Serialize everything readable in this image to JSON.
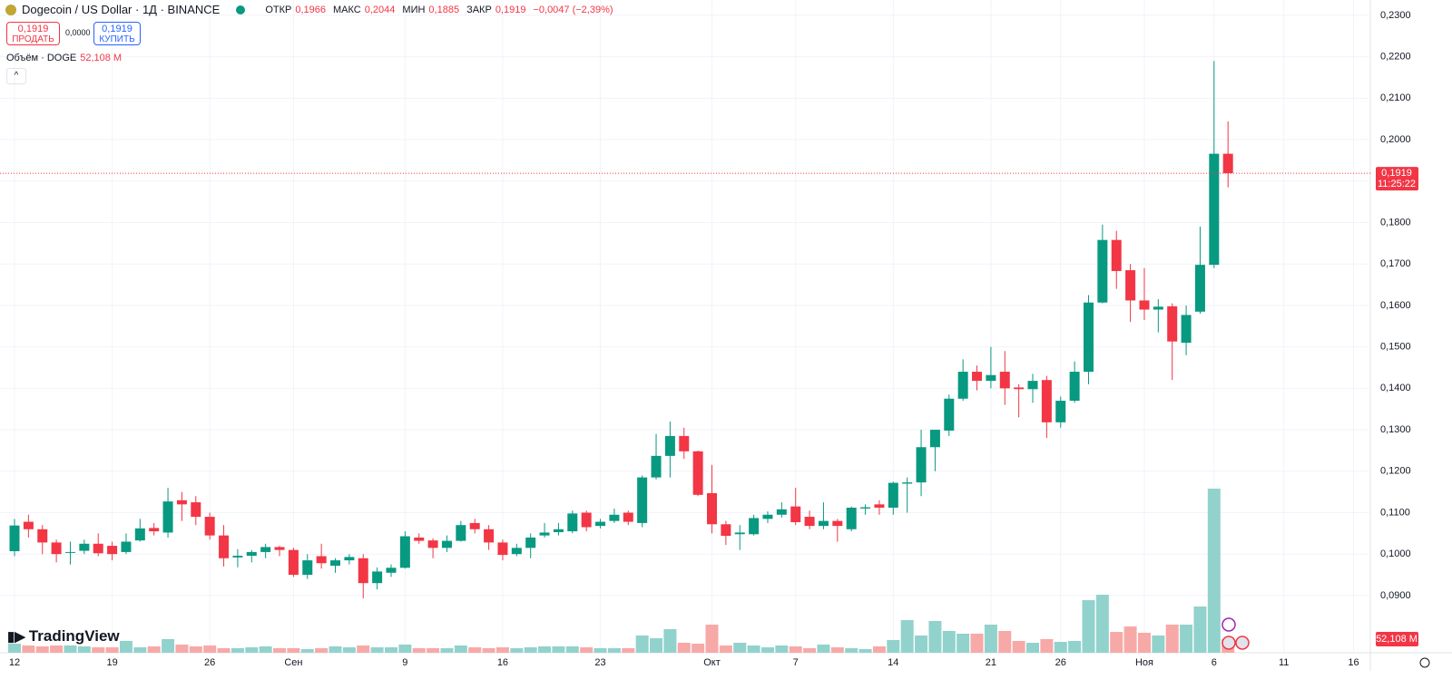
{
  "header": {
    "symbol": "Dogecoin / US Dollar · 1Д · BINANCE",
    "ohlc": [
      {
        "label": "ОТКР",
        "value": "0,1966"
      },
      {
        "label": "МАКС",
        "value": "0,2044"
      },
      {
        "label": "МИН",
        "value": "0,1885"
      },
      {
        "label": "ЗАКР",
        "value": "0,1919"
      }
    ],
    "change": "−0,0047 (−2,39%)"
  },
  "trade": {
    "sell_price": "0,1919",
    "sell_label": "ПРОДАТЬ",
    "spread": "0,0000",
    "buy_price": "0,1919",
    "buy_label": "КУПИТЬ"
  },
  "volume_legend": {
    "label": "Объём · DOGE",
    "value": "52,108 M"
  },
  "logo": "TradingView",
  "chart_data": {
    "type": "candlestick",
    "categories": [
      "12",
      null,
      null,
      null,
      null,
      null,
      null,
      "19",
      null,
      null,
      null,
      null,
      null,
      null,
      "26",
      null,
      null,
      null,
      null,
      null,
      "Сен",
      null,
      null,
      null,
      null,
      null,
      null,
      null,
      "9",
      null,
      null,
      null,
      null,
      null,
      null,
      "16",
      null,
      null,
      null,
      null,
      null,
      null,
      "23",
      null,
      null,
      null,
      null,
      null,
      null,
      null,
      "Окт",
      null,
      null,
      null,
      null,
      null,
      "7",
      null,
      null,
      null,
      null,
      null,
      null,
      "14",
      null,
      null,
      null,
      null,
      null,
      null,
      "21",
      null,
      null,
      null,
      null,
      "26",
      null,
      null,
      null,
      null,
      null,
      "Ноя",
      null,
      null,
      null,
      null,
      "6",
      null
    ],
    "future_labels": [
      "11",
      "16"
    ],
    "open": [
      0.1007,
      0.1078,
      0.106,
      0.1028,
      0.1003,
      0.1008,
      0.1025,
      0.102,
      0.1005,
      0.1033,
      0.1063,
      0.1052,
      0.113,
      0.1125,
      0.109,
      0.1045,
      0.0992,
      0.0996,
      0.1005,
      0.1017,
      0.101,
      0.095,
      0.0995,
      0.0972,
      0.0985,
      0.099,
      0.093,
      0.0955,
      0.0967,
      0.104,
      0.1033,
      0.1015,
      0.1032,
      0.1075,
      0.106,
      0.1028,
      0.1,
      0.1015,
      0.1045,
      0.1053,
      0.1055,
      0.11,
      0.1068,
      0.108,
      0.11,
      0.1075,
      0.1185,
      0.1237,
      0.1285,
      0.1248,
      0.1147,
      0.1072,
      0.1048,
      0.1048,
      0.1085,
      0.1095,
      0.1115,
      0.109,
      0.1068,
      0.108,
      0.106,
      0.111,
      0.112,
      0.1112,
      0.117,
      0.1173,
      0.1258,
      0.1298,
      0.1375,
      0.144,
      0.1418,
      0.144,
      0.1402,
      0.1398,
      0.142,
      0.1318,
      0.137,
      0.144,
      0.1607,
      0.1758,
      0.1685,
      0.1612,
      0.159,
      0.1598,
      0.151,
      0.1585,
      0.1698,
      0.1966
    ],
    "high": [
      0.1085,
      0.1095,
      0.107,
      0.1035,
      0.103,
      0.1035,
      0.105,
      0.103,
      0.105,
      0.1085,
      0.1075,
      0.116,
      0.115,
      0.114,
      0.11,
      0.107,
      0.1012,
      0.101,
      0.1025,
      0.102,
      0.1015,
      0.1,
      0.1025,
      0.099,
      0.1,
      0.1,
      0.0968,
      0.0975,
      0.1055,
      0.105,
      0.1038,
      0.1045,
      0.108,
      0.1085,
      0.107,
      0.1035,
      0.1025,
      0.105,
      0.1075,
      0.1075,
      0.1105,
      0.1105,
      0.1085,
      0.111,
      0.1105,
      0.119,
      0.129,
      0.132,
      0.1305,
      0.125,
      0.1215,
      0.108,
      0.107,
      0.1095,
      0.1103,
      0.1125,
      0.116,
      0.1105,
      0.1125,
      0.1085,
      0.1115,
      0.112,
      0.113,
      0.1175,
      0.1185,
      0.13,
      0.13,
      0.1385,
      0.147,
      0.1455,
      0.15,
      0.149,
      0.141,
      0.1435,
      0.143,
      0.138,
      0.1465,
      0.1625,
      0.1795,
      0.178,
      0.17,
      0.169,
      0.1615,
      0.1605,
      0.16,
      0.179,
      0.219,
      0.2044
    ],
    "low": [
      0.0995,
      0.104,
      0.1,
      0.098,
      0.0975,
      0.1,
      0.0995,
      0.0985,
      0.1,
      0.103,
      0.1045,
      0.104,
      0.108,
      0.107,
      0.1035,
      0.097,
      0.0968,
      0.098,
      0.099,
      0.0995,
      0.0945,
      0.094,
      0.0965,
      0.0955,
      0.0975,
      0.0893,
      0.0915,
      0.0945,
      0.0965,
      0.1025,
      0.099,
      0.1005,
      0.103,
      0.105,
      0.101,
      0.0985,
      0.0995,
      0.099,
      0.104,
      0.1045,
      0.105,
      0.1055,
      0.1062,
      0.1075,
      0.107,
      0.1065,
      0.118,
      0.1185,
      0.123,
      0.114,
      0.105,
      0.1022,
      0.101,
      0.1045,
      0.1075,
      0.1088,
      0.107,
      0.106,
      0.106,
      0.103,
      0.1055,
      0.1095,
      0.1095,
      0.1095,
      0.11,
      0.114,
      0.12,
      0.1285,
      0.137,
      0.1395,
      0.14,
      0.136,
      0.133,
      0.1365,
      0.128,
      0.1305,
      0.1365,
      0.141,
      0.1605,
      0.164,
      0.156,
      0.1565,
      0.1535,
      0.142,
      0.148,
      0.158,
      0.169,
      0.1885
    ],
    "close": [
      0.1069,
      0.106,
      0.1028,
      0.1,
      0.1005,
      0.1025,
      0.1002,
      0.1,
      0.103,
      0.1062,
      0.1055,
      0.1127,
      0.112,
      0.109,
      0.1045,
      0.099,
      0.0996,
      0.1005,
      0.1017,
      0.101,
      0.095,
      0.0985,
      0.0978,
      0.0985,
      0.0993,
      0.093,
      0.0958,
      0.0967,
      0.1043,
      0.1032,
      0.1015,
      0.1032,
      0.107,
      0.106,
      0.1028,
      0.0998,
      0.1015,
      0.104,
      0.1052,
      0.106,
      0.1098,
      0.1065,
      0.1078,
      0.1095,
      0.1078,
      0.1185,
      0.1237,
      0.1285,
      0.1248,
      0.1143,
      0.1072,
      0.1044,
      0.1052,
      0.1087,
      0.1095,
      0.1108,
      0.1077,
      0.1068,
      0.108,
      0.1068,
      0.1112,
      0.1113,
      0.1112,
      0.1172,
      0.1173,
      0.1258,
      0.13,
      0.1375,
      0.144,
      0.1418,
      0.1432,
      0.14,
      0.1398,
      0.1418,
      0.1318,
      0.137,
      0.144,
      0.1607,
      0.1758,
      0.1683,
      0.1612,
      0.159,
      0.1597,
      0.1513,
      0.1577,
      0.1698,
      0.1966,
      0.1919
    ],
    "volume": [
      34.7,
      27.8,
      24.3,
      27.8,
      27.8,
      24.3,
      20.8,
      20.8,
      45.2,
      20.8,
      24.3,
      52.1,
      31.3,
      24.3,
      27.8,
      17.4,
      17.4,
      20.8,
      24.3,
      17.4,
      17.4,
      13.9,
      17.4,
      24.3,
      20.8,
      27.8,
      20.8,
      20.8,
      31.3,
      17.4,
      17.4,
      17.4,
      27.8,
      20.8,
      17.4,
      20.8,
      17.4,
      20.8,
      24.3,
      24.3,
      24.3,
      20.8,
      17.4,
      17.4,
      17.4,
      66,
      55.6,
      90.3,
      38.2,
      34.7,
      107.7,
      27.8,
      38.2,
      27.8,
      20.8,
      27.8,
      24.3,
      17.4,
      31.3,
      20.8,
      17.4,
      13.9,
      24.3,
      48.6,
      125.1,
      66,
      121.6,
      83.4,
      73,
      73,
      107.7,
      83.4,
      45.2,
      38.2,
      52.1,
      41.7,
      45.2,
      201.5,
      222.3,
      79.9,
      100.7,
      76.4,
      66,
      107.7,
      107.7,
      177.2,
      628.8,
      52.108
    ],
    "close_label": "0,1919",
    "countdown": "11:25:22",
    "volume_label": "52,108 M",
    "ylim": [
      0.0762,
      0.2337
    ],
    "yticks": [
      {
        "value": 0.09,
        "label": "0,0900"
      },
      {
        "value": 0.1,
        "label": "0,1000"
      },
      {
        "value": 0.11,
        "label": "0,1100"
      },
      {
        "value": 0.12,
        "label": "0,1200"
      },
      {
        "value": 0.13,
        "label": "0,1300"
      },
      {
        "value": 0.14,
        "label": "0,1400"
      },
      {
        "value": 0.15,
        "label": "0,1500"
      },
      {
        "value": 0.16,
        "label": "0,1600"
      },
      {
        "value": 0.17,
        "label": "0,1700"
      },
      {
        "value": 0.18,
        "label": "0,1800"
      },
      {
        "value": 0.19,
        "label": "0,1900"
      },
      {
        "value": 0.2,
        "label": "0,2000"
      },
      {
        "value": 0.21,
        "label": "0,2100"
      },
      {
        "value": 0.22,
        "label": "0,2200"
      },
      {
        "value": 0.23,
        "label": "0,2300"
      }
    ],
    "grid": true,
    "up_color": "#089981",
    "down_color": "#f23645",
    "volume_up_color": "#92d2cc",
    "volume_down_color": "#f7a9a7"
  }
}
